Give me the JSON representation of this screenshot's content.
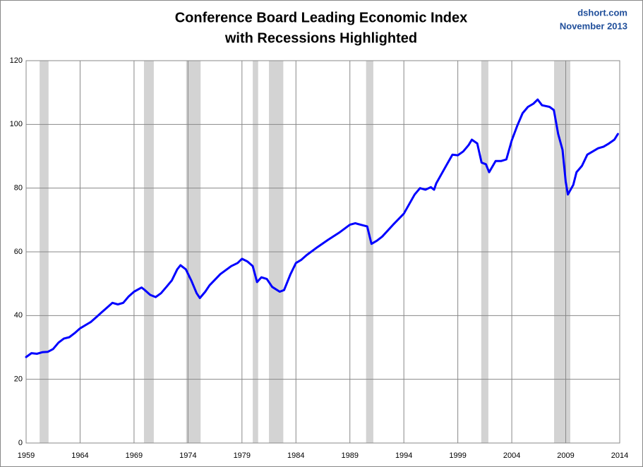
{
  "chart_data": {
    "type": "line",
    "title": [
      "Conference Board Leading Economic Index",
      "with Recessions Highlighted"
    ],
    "source": [
      "dshort.com",
      "November 2013"
    ],
    "color": "#0000ff",
    "recessions": [
      [
        1960.25,
        1961.08
      ],
      [
        1969.92,
        1970.83
      ],
      [
        1973.83,
        1975.17
      ],
      [
        1980.0,
        1980.5
      ],
      [
        1981.5,
        1982.83
      ],
      [
        1990.5,
        1991.17
      ],
      [
        2001.17,
        2001.83
      ],
      [
        2007.92,
        2009.42
      ]
    ],
    "recession_color": "#d3d3d3",
    "x": [
      1959.0,
      1959.5,
      1960.0,
      1960.5,
      1961.0,
      1961.5,
      1962.0,
      1962.5,
      1963.0,
      1963.5,
      1964.0,
      1965.0,
      1965.5,
      1966.0,
      1966.5,
      1967.0,
      1967.5,
      1968.0,
      1968.5,
      1969.0,
      1969.7,
      1970.0,
      1970.5,
      1971.0,
      1971.5,
      1972.0,
      1972.5,
      1973.0,
      1973.3,
      1973.8,
      1974.3,
      1974.8,
      1975.1,
      1975.6,
      1976.0,
      1977.0,
      1978.0,
      1978.6,
      1979.0,
      1979.5,
      1980.0,
      1980.4,
      1980.8,
      1981.3,
      1981.8,
      1982.5,
      1982.9,
      1983.5,
      1984.0,
      1984.5,
      1985.0,
      1986.0,
      1987.0,
      1988.0,
      1989.0,
      1989.5,
      1990.0,
      1990.6,
      1991.0,
      1991.5,
      1992.0,
      1993.0,
      1994.0,
      1995.0,
      1995.5,
      1996.0,
      1996.5,
      1996.8,
      1997.0,
      1998.0,
      1998.5,
      1999.0,
      1999.5,
      2000.0,
      2000.3,
      2000.8,
      2001.2,
      2001.6,
      2001.9,
      2002.5,
      2003.0,
      2003.5,
      2004.0,
      2004.5,
      2005.0,
      2005.5,
      2006.0,
      2006.4,
      2006.8,
      2007.5,
      2007.9,
      2008.3,
      2008.7,
      2009.0,
      2009.2,
      2009.7,
      2010.0,
      2010.5,
      2011.0,
      2011.5,
      2012.0,
      2012.5,
      2013.0,
      2013.5,
      2013.83
    ],
    "values": [
      27,
      28.2,
      28,
      28.5,
      28.6,
      29.5,
      31.5,
      32.8,
      33.2,
      34.5,
      36,
      38,
      39.5,
      41,
      42.5,
      44,
      43.5,
      44,
      46,
      47.5,
      48.8,
      48,
      46.5,
      45.8,
      47,
      49,
      51,
      54.5,
      55.8,
      54.5,
      51,
      47,
      45.5,
      47.5,
      49.5,
      53,
      55.5,
      56.5,
      57.8,
      57,
      55.5,
      50.5,
      52,
      51.5,
      49,
      47.5,
      48,
      53,
      56.5,
      57.5,
      59,
      61.5,
      63.8,
      66,
      68.5,
      69,
      68.5,
      68,
      62.5,
      63.5,
      64.8,
      68.5,
      72,
      78,
      80,
      79.5,
      80.3,
      79.5,
      81.5,
      87.5,
      90.5,
      90.3,
      91.5,
      93.5,
      95.2,
      94,
      88,
      87.5,
      85,
      88.5,
      88.5,
      89,
      95,
      99.5,
      103.5,
      105.5,
      106.5,
      107.8,
      106,
      105.5,
      104.5,
      97,
      92,
      82,
      78,
      81,
      85,
      87,
      90.5,
      91.5,
      92.5,
      93,
      94,
      95.2,
      97
    ],
    "xlim": [
      1959,
      2014
    ],
    "xticks": [
      1959,
      1964,
      1969,
      1974,
      1979,
      1984,
      1989,
      1994,
      1999,
      2004,
      2009,
      2014
    ],
    "ylim": [
      0,
      120
    ],
    "yticks": [
      0,
      20,
      40,
      60,
      80,
      100,
      120
    ],
    "grid": true
  }
}
